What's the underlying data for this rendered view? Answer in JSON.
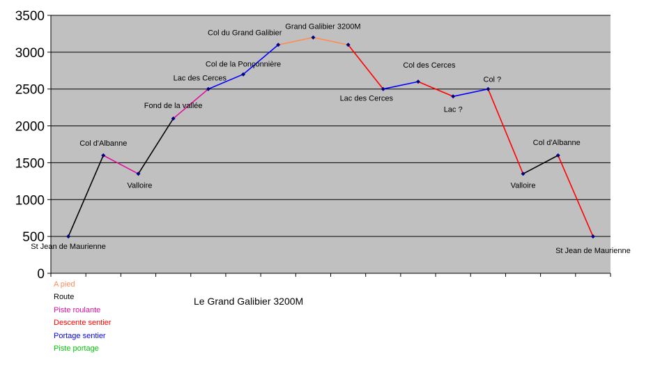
{
  "chart_data": {
    "type": "line",
    "title": "Le Grand Galibier 3200M",
    "xlabel": "",
    "ylabel": "",
    "ylim": [
      0,
      3500
    ],
    "yticks": [
      "0",
      "500",
      "1000",
      "1500",
      "2000",
      "2500",
      "3000",
      "3500"
    ],
    "grid": true,
    "legend_position": "bottom-left",
    "points": [
      {
        "label": "St Jean de Maurienne",
        "y": 500
      },
      {
        "label": "Col d'Albanne",
        "y": 1600
      },
      {
        "label": "Valloire",
        "y": 1350
      },
      {
        "label": "Fond de la vallée",
        "y": 2100
      },
      {
        "label": "Lac des Cerces",
        "y": 2500
      },
      {
        "label": "Col de la Ponçonnière",
        "y": 2700
      },
      {
        "label": "Col du Grand Galibier",
        "y": 3100
      },
      {
        "label": "Grand Galibier  3200M",
        "y": 3200
      },
      {
        "label": "",
        "y": 3100
      },
      {
        "label": "Lac des Cerces",
        "y": 2500
      },
      {
        "label": "Col des Cerces",
        "y": 2600
      },
      {
        "label": "Lac ?",
        "y": 2400
      },
      {
        "label": "Col ?",
        "y": 2500
      },
      {
        "label": "Valloire",
        "y": 1350
      },
      {
        "label": "Col d'Albanne",
        "y": 1600
      },
      {
        "label": "St Jean de Maurienne",
        "y": 500
      }
    ],
    "segments": [
      {
        "from": 0,
        "to": 1,
        "mode": "Route"
      },
      {
        "from": 1,
        "to": 2,
        "mode": "Piste roulante"
      },
      {
        "from": 2,
        "to": 3,
        "mode": "Route"
      },
      {
        "from": 3,
        "to": 4,
        "mode": "Piste roulante"
      },
      {
        "from": 4,
        "to": 5,
        "mode": "Portage sentier"
      },
      {
        "from": 5,
        "to": 6,
        "mode": "Portage sentier"
      },
      {
        "from": 6,
        "to": 7,
        "mode": "A pied"
      },
      {
        "from": 7,
        "to": 8,
        "mode": "A pied"
      },
      {
        "from": 8,
        "to": 9,
        "mode": "Descente sentier"
      },
      {
        "from": 9,
        "to": 10,
        "mode": "Portage sentier"
      },
      {
        "from": 10,
        "to": 11,
        "mode": "Descente sentier"
      },
      {
        "from": 11,
        "to": 12,
        "mode": "Portage sentier"
      },
      {
        "from": 12,
        "to": 13,
        "mode": "Descente sentier"
      },
      {
        "from": 13,
        "to": 14,
        "mode": "Route"
      },
      {
        "from": 14,
        "to": 15,
        "mode": "Descente sentier"
      }
    ],
    "legend": [
      {
        "name": "A pied",
        "color": "#ff8c55"
      },
      {
        "name": "Route",
        "color": "#000000"
      },
      {
        "name": "Piste roulante",
        "color": "#e0119a"
      },
      {
        "name": "Descente sentier",
        "color": "#ff0000"
      },
      {
        "name": "Portage sentier",
        "color": "#0000ff"
      },
      {
        "name": "Piste portage",
        "color": "#00cc00"
      }
    ],
    "colors": {
      "plot_background": "#c0c0c0",
      "gridline": "#000000",
      "marker": "#000080"
    }
  }
}
